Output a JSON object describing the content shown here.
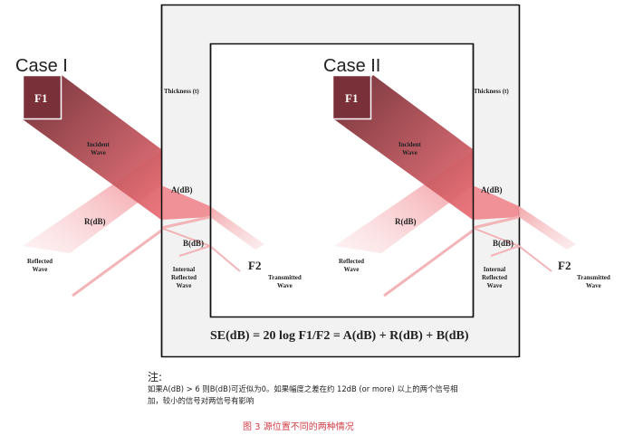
{
  "cases": [
    {
      "title": "Case I",
      "source": "F1",
      "receiver": "F2",
      "thickness": "Thickness (t)",
      "incident": [
        "Incident",
        "Wave"
      ],
      "absorption": "A(dB)",
      "reflection": "R(dB)",
      "internal": "B(dB)",
      "reflected_wave": [
        "Reflected",
        "Wave"
      ],
      "internal_wave": [
        "Internal",
        "Reflected",
        "Wave"
      ],
      "transmitted_wave": [
        "Transmitted",
        "Wave"
      ]
    },
    {
      "title": "Case II",
      "source": "F1",
      "receiver": "F2",
      "thickness": "Thickness (t)",
      "incident": [
        "Incident",
        "Wave"
      ],
      "absorption": "A(dB)",
      "reflection": "R(dB)",
      "internal": "B(dB)",
      "reflected_wave": [
        "Reflected",
        "Wave"
      ],
      "internal_wave": [
        "Internal",
        "Reflected",
        "Wave"
      ],
      "transmitted_wave": [
        "Transmitted",
        "Wave"
      ]
    }
  ],
  "formula": "SE(dB) = 20 log F1/F2 = A(dB) + R(dB) + B(dB)",
  "note": {
    "title": "注:",
    "line1": "如果A(dB) > 6 则B(dB)可近似为0。如果幅度之差在约 12dB (or more) 以上的两个信号相",
    "line2": "加，较小的信号对两信号有影响"
  },
  "caption": "图 3  源位置不同的两种情况",
  "colors": {
    "wave_dark": "#7a2e35",
    "wave_light": "#ee7b82",
    "shield_fill": "#f2f2f2",
    "caption": "#d2404a"
  }
}
